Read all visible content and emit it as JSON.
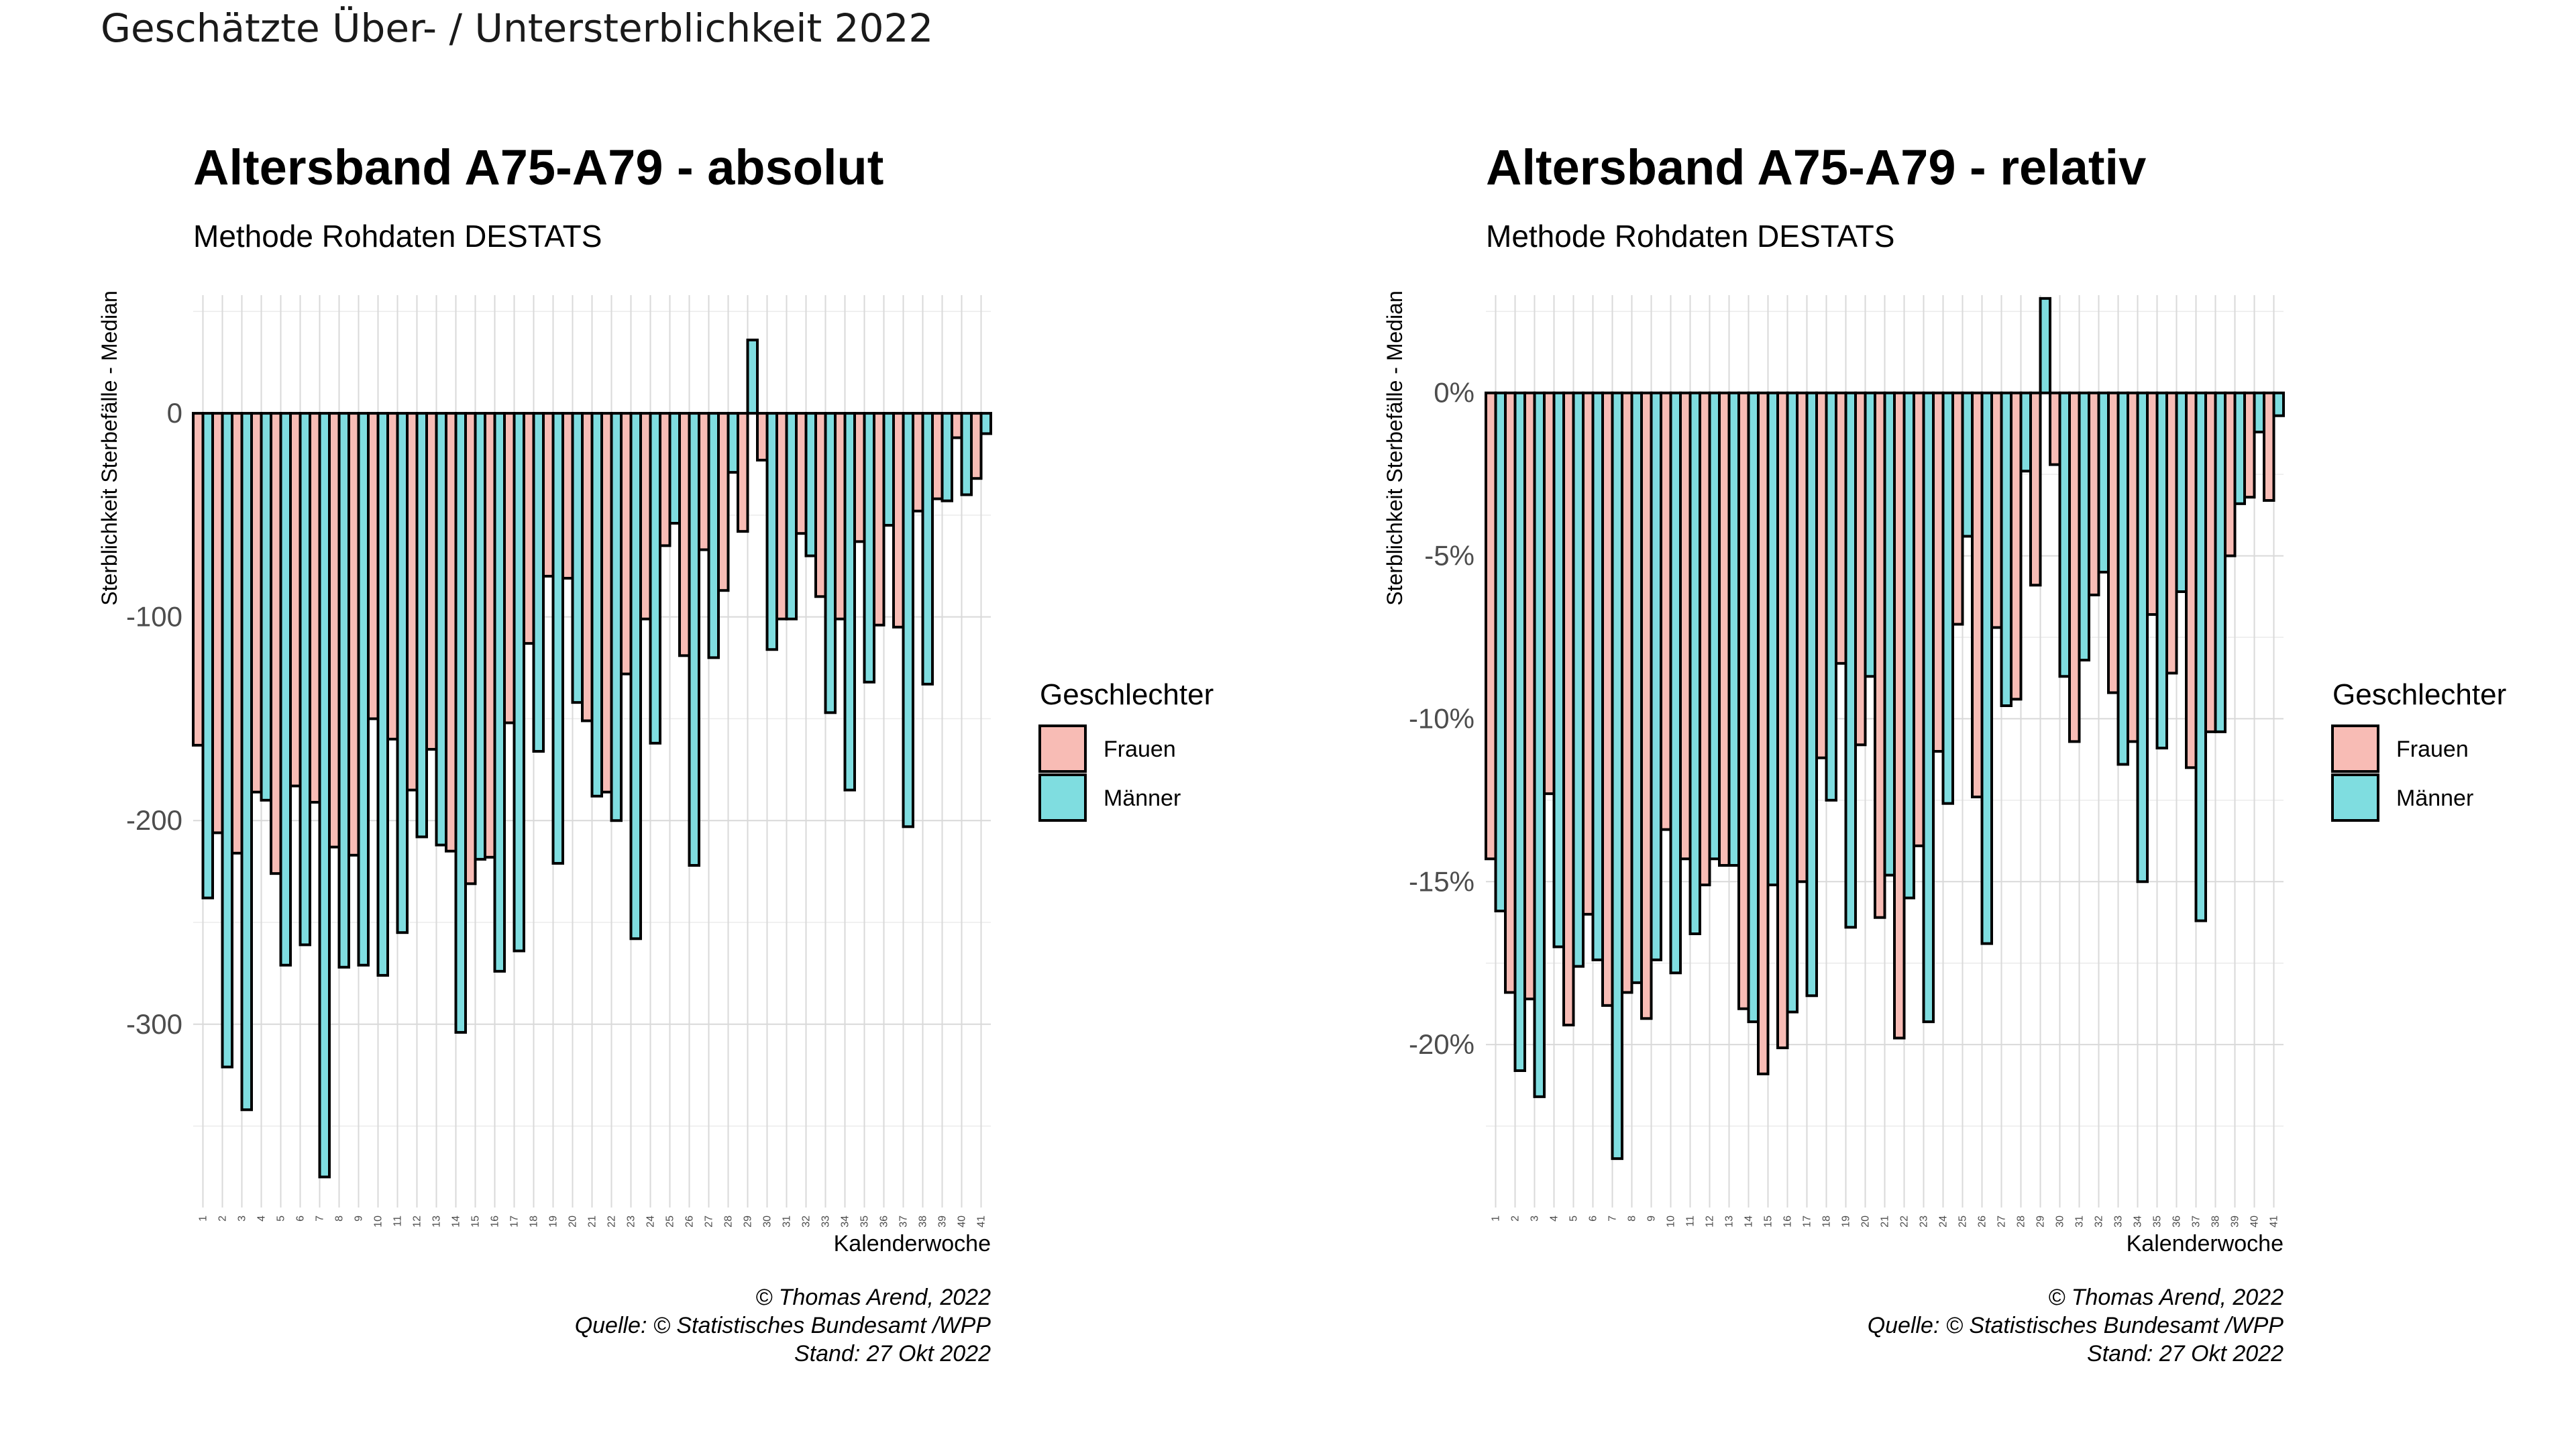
{
  "page_title": "Geschätzte Über- / Untersterblichkeit 2022",
  "chart_data": [
    {
      "type": "bar",
      "title": "Altersband A75-A79 - absolut",
      "subtitle": "Methode Rohdaten DESTATS",
      "xlabel": "Kalenderwoche",
      "ylabel": "Sterblichkeit Sterbefälle - Median",
      "ylim": [
        -390,
        58
      ],
      "yticks": [
        0,
        -100,
        -200,
        -300
      ],
      "ytick_labels": [
        "0",
        "-100",
        "-200",
        "-300"
      ],
      "grid": true,
      "legend_position": "right",
      "legend_title": "Geschlechter",
      "categories": [
        "1",
        "2",
        "3",
        "4",
        "5",
        "6",
        "7",
        "8",
        "9",
        "10",
        "11",
        "12",
        "13",
        "14",
        "15",
        "16",
        "17",
        "18",
        "19",
        "20",
        "21",
        "22",
        "23",
        "24",
        "25",
        "26",
        "27",
        "28",
        "29",
        "30",
        "31",
        "32",
        "33",
        "34",
        "35",
        "36",
        "37",
        "38",
        "39",
        "40",
        "41"
      ],
      "series": [
        {
          "name": "Frauen",
          "color": "#F8BCB5",
          "values": [
            -163,
            -206,
            -216,
            -186,
            -226,
            -183,
            -191,
            -213,
            -217,
            -150,
            -160,
            -185,
            -165,
            -215,
            -231,
            -218,
            -152,
            -113,
            -80,
            -81,
            -151,
            -186,
            -128,
            -101,
            -65,
            -119,
            -67,
            -87,
            -58,
            -23,
            -101,
            -59,
            -90,
            -101,
            -63,
            -104,
            -105,
            -48,
            -42,
            -12,
            -32
          ]
        },
        {
          "name": "Männer",
          "color": "#7FDDE0",
          "values": [
            -238,
            -321,
            -342,
            -190,
            -271,
            -261,
            -375,
            -272,
            -271,
            -276,
            -255,
            -208,
            -212,
            -304,
            -219,
            -274,
            -264,
            -166,
            -221,
            -142,
            -188,
            -200,
            -258,
            -162,
            -54,
            -222,
            -120,
            -29,
            36,
            -116,
            -101,
            -70,
            -147,
            -185,
            -132,
            -55,
            -203,
            -133,
            -43,
            -40,
            -10
          ]
        }
      ]
    },
    {
      "type": "bar",
      "title": "Altersband A75-A79 - relativ",
      "subtitle": "Methode Rohdaten DESTATS",
      "xlabel": "Kalenderwoche",
      "ylabel": "Sterblichkeit Sterbefälle - Median",
      "ylim": [
        -25,
        3
      ],
      "yticks": [
        0,
        -5,
        -10,
        -15,
        -20
      ],
      "ytick_labels": [
        "0%",
        "-5%",
        "-10%",
        "-15%",
        "-20%"
      ],
      "grid": true,
      "legend_position": "right",
      "legend_title": "Geschlechter",
      "categories": [
        "1",
        "2",
        "3",
        "4",
        "5",
        "6",
        "7",
        "8",
        "9",
        "10",
        "11",
        "12",
        "13",
        "14",
        "15",
        "16",
        "17",
        "18",
        "19",
        "20",
        "21",
        "22",
        "23",
        "24",
        "25",
        "26",
        "27",
        "28",
        "29",
        "30",
        "31",
        "32",
        "33",
        "34",
        "35",
        "36",
        "37",
        "38",
        "39",
        "40",
        "41"
      ],
      "series": [
        {
          "name": "Frauen",
          "color": "#F8BCB5",
          "values": [
            -14.3,
            -18.4,
            -18.6,
            -12.3,
            -19.4,
            -16.0,
            -18.8,
            -18.4,
            -19.2,
            -13.4,
            -14.3,
            -15.1,
            -14.5,
            -18.9,
            -20.9,
            -20.1,
            -15.0,
            -11.2,
            -8.3,
            -10.8,
            -16.1,
            -19.8,
            -13.9,
            -11.0,
            -7.1,
            -12.4,
            -7.2,
            -9.4,
            -5.9,
            -2.2,
            -10.7,
            -6.2,
            -9.2,
            -10.7,
            -6.8,
            -8.6,
            -11.5,
            -10.4,
            -5.0,
            -3.2,
            -3.3
          ]
        },
        {
          "name": "Männer",
          "color": "#7FDDE0",
          "values": [
            -15.9,
            -20.8,
            -21.6,
            -17.0,
            -17.6,
            -17.4,
            -23.5,
            -18.1,
            -17.4,
            -17.8,
            -16.6,
            -14.3,
            -14.5,
            -19.3,
            -15.1,
            -19.0,
            -18.5,
            -12.5,
            -16.4,
            -8.7,
            -14.8,
            -15.5,
            -19.3,
            -12.6,
            -4.4,
            -16.9,
            -9.6,
            -2.4,
            2.9,
            -8.7,
            -8.2,
            -5.5,
            -11.4,
            -15.0,
            -10.9,
            -6.1,
            -16.2,
            -10.4,
            -3.4,
            -1.2,
            -0.7
          ]
        }
      ]
    }
  ],
  "legend": {
    "title": "Geschlechter",
    "items": [
      {
        "label": "Frauen",
        "color": "#F8BCB5"
      },
      {
        "label": "Männer",
        "color": "#7FDDE0"
      }
    ]
  },
  "caption": {
    "line1": "© Thomas Arend, 2022",
    "line2": "Quelle: © Statistisches Bundesamt /WPP",
    "line3": "Stand: 27 Okt 2022"
  }
}
